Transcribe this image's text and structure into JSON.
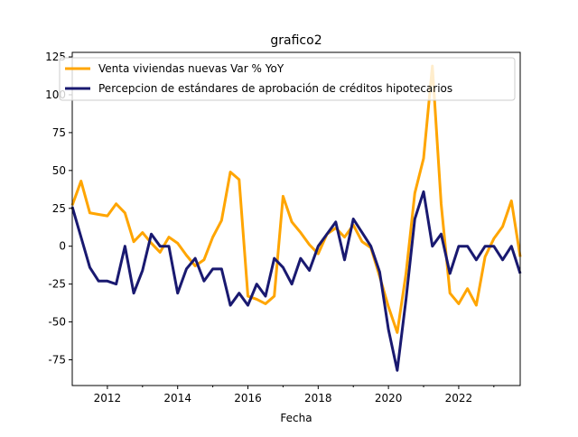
{
  "chart_data": {
    "type": "line",
    "title": "grafico2",
    "xlabel": "Fecha",
    "ylabel": "",
    "xlim": [
      2011.0,
      2023.75
    ],
    "ylim": [
      -92,
      128
    ],
    "x_ticks": [
      2012,
      2014,
      2016,
      2018,
      2020,
      2022
    ],
    "x_minor_ticks": [
      2013,
      2015,
      2017,
      2019,
      2021,
      2023
    ],
    "y_ticks": [
      -75,
      -50,
      -25,
      0,
      25,
      50,
      75,
      100,
      125
    ],
    "grid": false,
    "legend_position": "top-left",
    "x": [
      2011.0,
      2011.25,
      2011.5,
      2011.75,
      2012.0,
      2012.25,
      2012.5,
      2012.75,
      2013.0,
      2013.25,
      2013.5,
      2013.75,
      2014.0,
      2014.25,
      2014.5,
      2014.75,
      2015.0,
      2015.25,
      2015.5,
      2015.75,
      2016.0,
      2016.25,
      2016.5,
      2016.75,
      2017.0,
      2017.25,
      2017.5,
      2017.75,
      2018.0,
      2018.25,
      2018.5,
      2018.75,
      2019.0,
      2019.25,
      2019.5,
      2019.75,
      2020.0,
      2020.25,
      2020.5,
      2020.75,
      2021.0,
      2021.25,
      2021.5,
      2021.75,
      2022.0,
      2022.25,
      2022.5,
      2022.75,
      2023.0,
      2023.25,
      2023.5,
      2023.75
    ],
    "series": [
      {
        "name": "Venta viviendas nuevas Var % YoY",
        "color": "#ffa500",
        "values": [
          27,
          43,
          22,
          21,
          20,
          28,
          22,
          3,
          9,
          2,
          -4,
          6,
          2,
          -6,
          -13,
          -9,
          6,
          17,
          49,
          44,
          -33,
          -35,
          -38,
          -33,
          33,
          16,
          9,
          1,
          -5,
          8,
          12,
          6,
          14,
          3,
          -1,
          -20,
          -40,
          -57,
          -18,
          35,
          58,
          119,
          28,
          -31,
          -38,
          -28,
          -39,
          -7,
          5,
          13,
          30,
          -7
        ]
      },
      {
        "name": "Percepcion de estándares de aprobación de créditos hipotecarios",
        "color": "#191970",
        "values": [
          26,
          6,
          -14,
          -23,
          -23,
          -25,
          0,
          -31,
          -16,
          8,
          0,
          0,
          -31,
          -15,
          -8,
          -23,
          -15,
          -15,
          -39,
          -31,
          -39,
          -25,
          -33,
          -8,
          -14,
          -25,
          -8,
          -16,
          0,
          8,
          16,
          -9,
          18,
          9,
          0,
          -17,
          -55,
          -82,
          -35,
          18,
          36,
          0,
          8,
          -18,
          0,
          0,
          -9,
          0,
          0,
          -9,
          0,
          -18
        ]
      }
    ]
  }
}
